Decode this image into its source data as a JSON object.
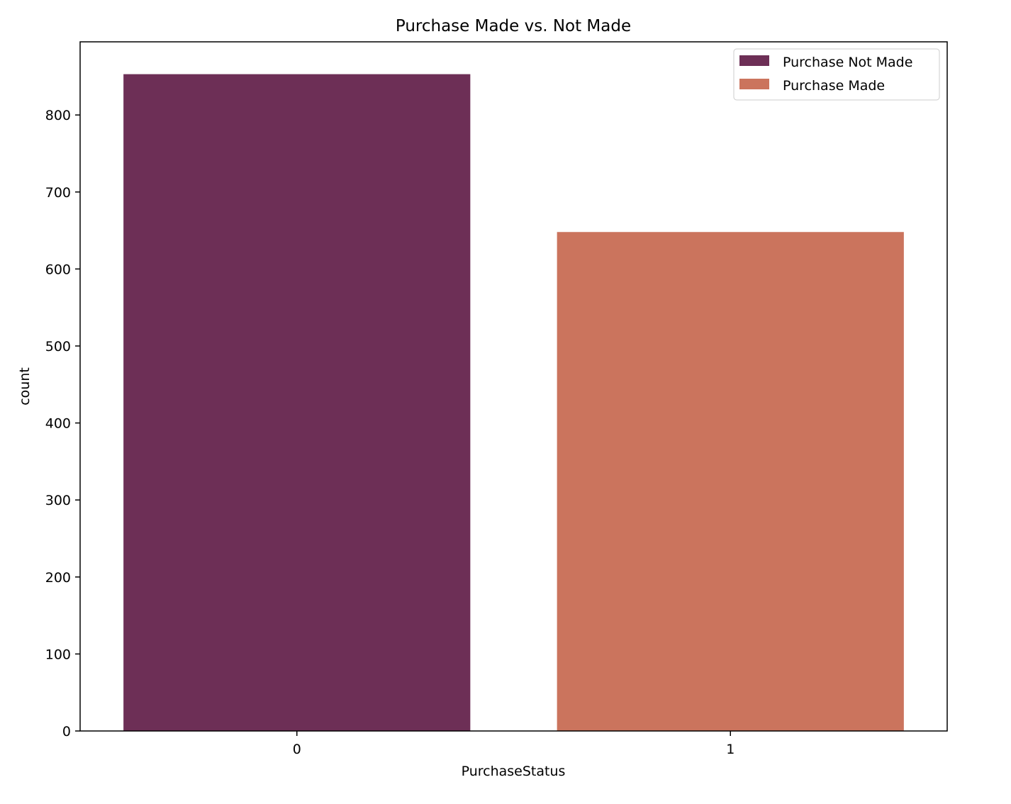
{
  "chart_data": {
    "type": "bar",
    "title": "Purchase Made vs. Not Made",
    "xlabel": "PurchaseStatus",
    "ylabel": "count",
    "categories": [
      "0",
      "1"
    ],
    "values": [
      853,
      648
    ],
    "colors": [
      "#6d2f56",
      "#cb745d"
    ],
    "ylim": [
      0,
      895
    ],
    "yticks": [
      0,
      100,
      200,
      300,
      400,
      500,
      600,
      700,
      800
    ],
    "grid": false,
    "legend": {
      "placement": "top-right",
      "entries": [
        {
          "label": "Purchase Not Made",
          "color": "#6d2f56"
        },
        {
          "label": "Purchase Made",
          "color": "#cb745d"
        }
      ]
    }
  }
}
